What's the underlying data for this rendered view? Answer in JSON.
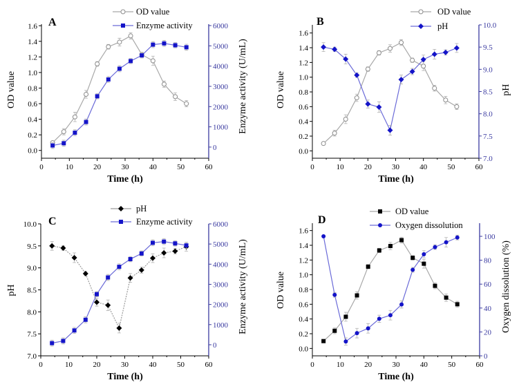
{
  "chart_data": [
    {
      "type": "line",
      "panel_label": "A",
      "xlabel": "Time (h)",
      "ylabel_left": "OD value",
      "ylabel_right": "Enzyme activity (U/mL)",
      "xlim": [
        0,
        60
      ],
      "x_ticks": [
        0,
        10,
        20,
        30,
        40,
        50,
        60
      ],
      "ylim_left": [
        -0.1,
        1.62
      ],
      "y_ticks_left": [
        "0.0",
        "0.2",
        "0.4",
        "0.6",
        "0.8",
        "1.0",
        "1.2",
        "1.4",
        "1.6"
      ],
      "ylim_right": [
        -550,
        6070
      ],
      "y_ticks_right": [
        "0",
        "1000",
        "2000",
        "3000",
        "4000",
        "5000",
        "6000"
      ],
      "legend_position": "top",
      "series": [
        {
          "name": "OD value",
          "axis": "left",
          "marker": "open-circle",
          "color": "#8c8c8c",
          "line_color": "#a8a8a8",
          "x": [
            4,
            8,
            12,
            16,
            20,
            24,
            28,
            32,
            36,
            40,
            44,
            48,
            52
          ],
          "y": [
            0.1,
            0.24,
            0.43,
            0.72,
            1.11,
            1.33,
            1.39,
            1.47,
            1.23,
            1.15,
            0.85,
            0.69,
            0.6
          ],
          "err": [
            0.02,
            0.04,
            0.06,
            0.05,
            0.03,
            0.03,
            0.05,
            0.04,
            0.03,
            0.06,
            0.04,
            0.05,
            0.04
          ]
        },
        {
          "name": "Enzyme activity",
          "axis": "right",
          "marker": "square",
          "color": "#1414c8",
          "line_color": "#6a6ad8",
          "x": [
            4,
            8,
            12,
            16,
            20,
            24,
            28,
            32,
            36,
            40,
            44,
            48,
            52
          ],
          "y": [
            80,
            190,
            710,
            1240,
            2510,
            3340,
            3870,
            4250,
            4530,
            5060,
            5120,
            5030,
            4930
          ],
          "err": [
            150,
            150,
            150,
            150,
            130,
            150,
            150,
            130,
            130,
            150,
            150,
            130,
            150
          ]
        }
      ]
    },
    {
      "type": "line",
      "panel_label": "B",
      "xlabel": "Time (h)",
      "ylabel_left": "OD value",
      "ylabel_right": "pH",
      "xlim": [
        0,
        60
      ],
      "x_ticks": [
        0,
        10,
        20,
        30,
        40,
        50,
        60
      ],
      "ylim_left": [
        -0.1,
        1.71
      ],
      "y_ticks_left": [
        "0.0",
        "0.2",
        "0.4",
        "0.6",
        "0.8",
        "1.0",
        "1.2",
        "1.4",
        "1.6"
      ],
      "ylim_right": [
        7.0,
        10.0
      ],
      "y_ticks_right": [
        "7.0",
        "7.5",
        "8.0",
        "8.5",
        "9.0",
        "9.5",
        "10.0"
      ],
      "legend_position": "top",
      "series": [
        {
          "name": "OD value",
          "axis": "left",
          "marker": "open-circle",
          "color": "#8c8c8c",
          "line_color": "#a8a8a8",
          "x": [
            4,
            8,
            12,
            16,
            20,
            24,
            28,
            32,
            36,
            40,
            44,
            48,
            52
          ],
          "y": [
            0.1,
            0.24,
            0.43,
            0.72,
            1.11,
            1.33,
            1.39,
            1.47,
            1.23,
            1.15,
            0.85,
            0.69,
            0.6
          ],
          "err": [
            0.02,
            0.04,
            0.06,
            0.05,
            0.03,
            0.03,
            0.05,
            0.04,
            0.03,
            0.06,
            0.04,
            0.05,
            0.04
          ]
        },
        {
          "name": "pH",
          "axis": "right",
          "marker": "diamond",
          "color": "#1414c8",
          "line_color": "#6a6ad8",
          "x": [
            4,
            8,
            12,
            16,
            20,
            24,
            28,
            32,
            36,
            40,
            44,
            48,
            52
          ],
          "y": [
            9.5,
            9.45,
            9.23,
            8.87,
            8.22,
            8.15,
            7.63,
            8.77,
            8.95,
            9.22,
            9.34,
            9.38,
            9.48
          ],
          "err": [
            0.1,
            0.05,
            0.11,
            0.05,
            0.09,
            0.12,
            0.11,
            0.1,
            0.07,
            0.1,
            0.11,
            0.06,
            0.1
          ]
        }
      ]
    },
    {
      "type": "line",
      "panel_label": "C",
      "xlabel": "Time (h)",
      "ylabel_left": "pH",
      "ylabel_right": "Enzyme activity (U/mL)",
      "xlim": [
        0,
        60
      ],
      "x_ticks": [
        0,
        10,
        20,
        30,
        40,
        50,
        60
      ],
      "ylim_left": [
        7.0,
        10.0
      ],
      "y_ticks_left": [
        "7.0",
        "7.5",
        "8.0",
        "8.5",
        "9.0",
        "9.5",
        "10.0"
      ],
      "ylim_right": [
        -550,
        6000
      ],
      "y_ticks_right": [
        "0",
        "1000",
        "2000",
        "3000",
        "4000",
        "5000",
        "6000"
      ],
      "legend_position": "top",
      "series": [
        {
          "name": "pH",
          "axis": "left",
          "marker": "diamond",
          "color": "#000000",
          "line_color": "#9a9a9a",
          "dashed": true,
          "x": [
            4,
            8,
            12,
            16,
            20,
            24,
            28,
            32,
            36,
            40,
            44,
            48,
            52
          ],
          "y": [
            9.5,
            9.45,
            9.23,
            8.87,
            8.22,
            8.15,
            7.63,
            8.77,
            8.95,
            9.22,
            9.34,
            9.38,
            9.48
          ],
          "err": [
            0.1,
            0.05,
            0.11,
            0.05,
            0.09,
            0.12,
            0.11,
            0.1,
            0.07,
            0.1,
            0.11,
            0.06,
            0.1
          ]
        },
        {
          "name": "Enzyme activity",
          "axis": "right",
          "marker": "square",
          "color": "#1414c8",
          "line_color": "#6a6ad8",
          "x": [
            4,
            8,
            12,
            16,
            20,
            24,
            28,
            32,
            36,
            40,
            44,
            48,
            52
          ],
          "y": [
            80,
            190,
            710,
            1240,
            2510,
            3340,
            3870,
            4250,
            4530,
            5060,
            5120,
            5030,
            4930
          ],
          "err": [
            150,
            150,
            150,
            150,
            130,
            150,
            150,
            130,
            130,
            150,
            150,
            130,
            150
          ]
        }
      ]
    },
    {
      "type": "line",
      "panel_label": "D",
      "xlabel": "Time (h)",
      "ylabel_left": "OD value",
      "ylabel_right": "Oxygen dissolution (%)",
      "xlim": [
        0,
        60
      ],
      "x_ticks": [
        0,
        10,
        20,
        30,
        40,
        50,
        60
      ],
      "ylim_left": [
        -0.1,
        1.7
      ],
      "y_ticks_left": [
        "0.0",
        "0.2",
        "0.4",
        "0.6",
        "0.8",
        "1.0",
        "1.2",
        "1.4",
        "1.6"
      ],
      "ylim_right": [
        0,
        111
      ],
      "y_ticks_right": [
        "0",
        "20",
        "40",
        "60",
        "80",
        "100"
      ],
      "legend_position": "top",
      "series": [
        {
          "name": "OD value",
          "axis": "left",
          "marker": "square",
          "color": "#000000",
          "line_color": "#a8a8a8",
          "x": [
            4,
            8,
            12,
            16,
            20,
            24,
            28,
            32,
            36,
            40,
            44,
            48,
            52
          ],
          "y": [
            0.1,
            0.24,
            0.43,
            0.72,
            1.11,
            1.33,
            1.39,
            1.47,
            1.23,
            1.15,
            0.85,
            0.69,
            0.6
          ],
          "err": [
            0.02,
            0.04,
            0.06,
            0.05,
            0.03,
            0.03,
            0.05,
            0.04,
            0.03,
            0.06,
            0.04,
            0.05,
            0.04
          ]
        },
        {
          "name": "Oxygen dissolution",
          "axis": "right",
          "marker": "circle",
          "color": "#1414c8",
          "line_color": "#6a6ad8",
          "x": [
            4,
            8,
            12,
            16,
            20,
            24,
            28,
            32,
            36,
            40,
            44,
            48,
            52
          ],
          "y": [
            100,
            51,
            12,
            19,
            23,
            31,
            34,
            43,
            72,
            85,
            91,
            95,
            99
          ],
          "err": [
            0,
            2,
            3,
            4,
            4,
            3,
            4,
            3,
            2,
            3,
            2,
            4,
            2
          ]
        }
      ]
    }
  ]
}
